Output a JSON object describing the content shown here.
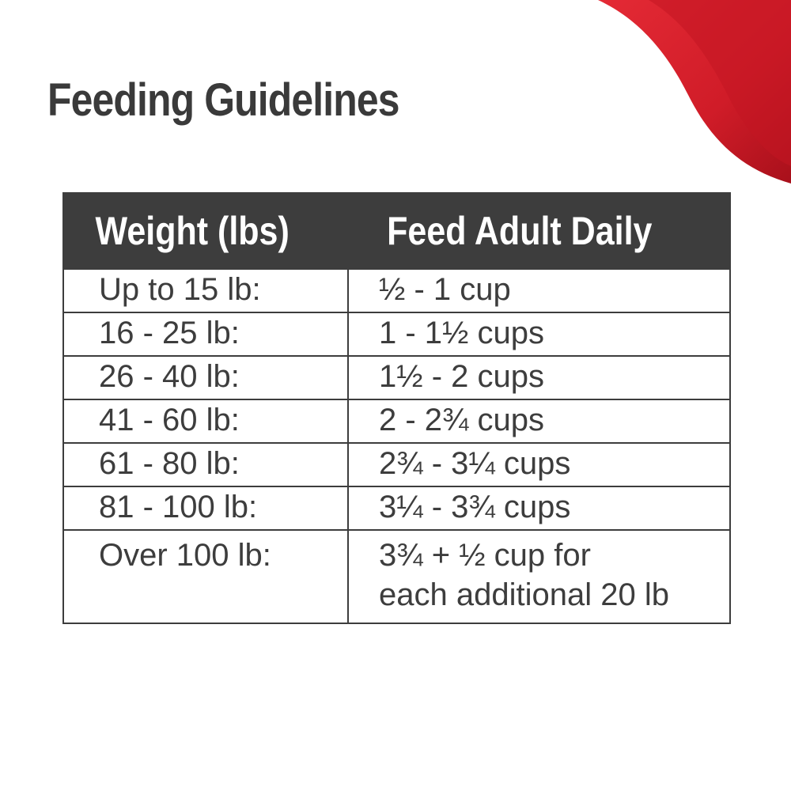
{
  "title": "Feeding Guidelines",
  "colors": {
    "text": "#3d3d3d",
    "header_bg": "#3d3d3d",
    "header_text": "#ffffff",
    "accent_red": "#d31f2b"
  },
  "table": {
    "headers": {
      "weight": "Weight (lbs)",
      "feed": "Feed Adult Daily"
    },
    "rows": [
      {
        "weight": "Up to 15 lb:",
        "feed": "½ - 1 cup"
      },
      {
        "weight": "16 - 25 lb:",
        "feed": "1 - 1½ cups"
      },
      {
        "weight": "26 - 40 lb:",
        "feed": "1½ - 2 cups"
      },
      {
        "weight": "41 - 60 lb:",
        "feed": "2 - 2¾ cups"
      },
      {
        "weight": "61 - 80 lb:",
        "feed": "2¾ - 3¼ cups"
      },
      {
        "weight": "81 - 100 lb:",
        "feed": "3¼ - 3¾ cups"
      },
      {
        "weight": "Over 100 lb:",
        "feed_line1": "3¾ + ½ cup for",
        "feed_line2": "each additional 20 lb"
      }
    ]
  }
}
